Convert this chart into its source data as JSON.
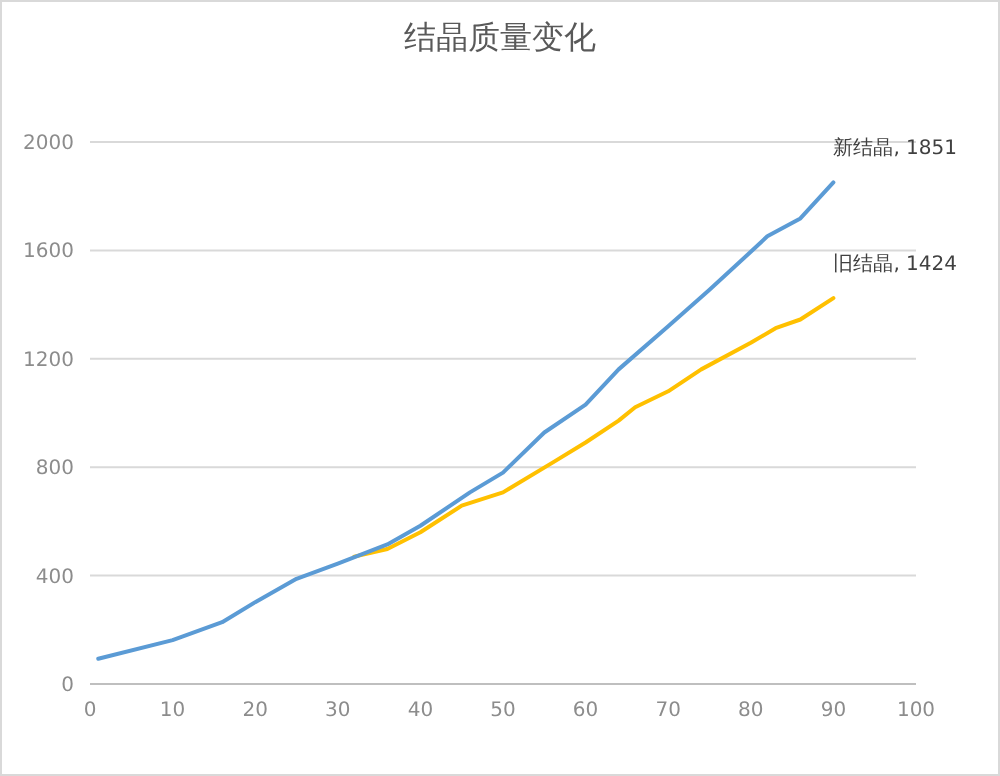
{
  "chart_data": {
    "type": "line",
    "title": "结晶质量变化",
    "xlim": [
      0,
      100
    ],
    "xticks": [
      0,
      10,
      20,
      30,
      40,
      50,
      60,
      70,
      80,
      90,
      100
    ],
    "ylim": [
      0,
      2000
    ],
    "yticks": [
      0,
      400,
      800,
      1200,
      1600,
      2000
    ],
    "grid": "y",
    "series": [
      {
        "name": "旧结晶",
        "color": "#ffc000",
        "x": [
          32,
          36,
          40,
          45,
          50,
          56,
          60,
          64,
          66,
          70,
          74,
          80,
          83,
          86,
          90
        ],
        "values": [
          470,
          498,
          560,
          658,
          707,
          817,
          891,
          972,
          1021,
          1080,
          1161,
          1259,
          1313,
          1345,
          1424
        ],
        "value_labels": [
          null,
          null,
          null,
          null,
          null,
          null,
          null,
          null,
          null,
          null,
          null,
          null,
          null,
          null,
          ", 1424"
        ]
      },
      {
        "name": "新结晶",
        "color": "#5b9bd5",
        "x": [
          1,
          10,
          16,
          20,
          25,
          30,
          36,
          40,
          46,
          50,
          55,
          60,
          64,
          70,
          75,
          80,
          82,
          86,
          90
        ],
        "values": [
          93,
          162,
          228,
          302,
          388,
          444,
          515,
          584,
          707,
          780,
          928,
          1031,
          1161,
          1320,
          1455,
          1595,
          1652,
          1718,
          1851
        ],
        "value_labels": [
          null,
          null,
          null,
          null,
          null,
          null,
          null,
          null,
          null,
          null,
          null,
          null,
          null,
          null,
          null,
          null,
          null,
          null,
          ", 1851"
        ]
      }
    ]
  }
}
